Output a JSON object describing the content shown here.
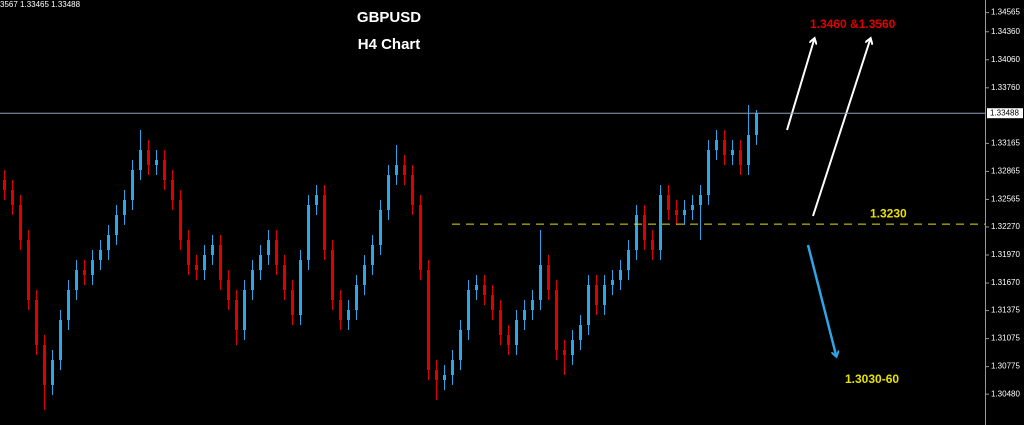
{
  "chart_data": {
    "type": "candlestick",
    "info": "3567 1.33465 1.33488",
    "title": "GBPUSD",
    "subtitle": "H4 Chart",
    "up_color": "#2fa4e7",
    "down_color": "#e00000",
    "ylim": [
      1.3015,
      1.347
    ],
    "yticks": [
      {
        "value": 1.34565,
        "label": "1.34565"
      },
      {
        "value": 1.3436,
        "label": "1.34360"
      },
      {
        "value": 1.3406,
        "label": "1.34060"
      },
      {
        "value": 1.3376,
        "label": "1.33760"
      },
      {
        "value": 1.33165,
        "label": "1.33165"
      },
      {
        "value": 1.32865,
        "label": "1.32865"
      },
      {
        "value": 1.32565,
        "label": "1.32565"
      },
      {
        "value": 1.3227,
        "label": "1.32270"
      },
      {
        "value": 1.3197,
        "label": "1.31970"
      },
      {
        "value": 1.3167,
        "label": "1.31670"
      },
      {
        "value": 1.31375,
        "label": "1.31375"
      },
      {
        "value": 1.31075,
        "label": "1.31075"
      },
      {
        "value": 1.30775,
        "label": "1.30775"
      },
      {
        "value": 1.3048,
        "label": "1.30480"
      }
    ],
    "price_line": {
      "value": 1.33488,
      "label": "1.33488",
      "color": "#8fa0b8"
    },
    "level_line": {
      "value": 1.323,
      "label": "1.3230",
      "color": "#e8e000"
    },
    "annotations": [
      "1.3460 &1.3560",
      "1.3030-60"
    ],
    "open": [
      1.32773,
      1.32666,
      1.32505,
      1.3213,
      1.31488,
      1.31006,
      1.30578,
      1.30846,
      1.31274,
      1.31595,
      1.31809,
      1.31756,
      1.31916,
      1.32023,
      1.32184,
      1.32398,
      1.32559,
      1.3288,
      1.33094,
      1.32933,
      1.32987,
      1.32773,
      1.32559,
      1.3213,
      1.31863,
      1.31809,
      1.3197,
      1.32077,
      1.31702,
      1.31488,
      1.31167,
      1.31595,
      1.31809,
      1.3197,
      1.3213,
      1.31863,
      1.31595,
      1.31327,
      1.31916,
      1.32505,
      1.32612,
      1.32023,
      1.31488,
      1.31274,
      1.31381,
      1.31649,
      1.31863,
      1.32077,
      1.32452,
      1.32826,
      1.32933,
      1.32826,
      1.32505,
      1.31809,
      1.30738,
      1.30631,
      1.30685,
      1.30846,
      1.31167,
      1.31595,
      1.31649,
      1.31541,
      1.31381,
      1.31113,
      1.31006,
      1.31274,
      1.31381,
      1.31488,
      1.31863,
      1.31595,
      1.30953,
      1.30899,
      1.3106,
      1.3122,
      1.31649,
      1.31434,
      1.31649,
      1.31702,
      1.31809,
      1.32023,
      1.32398,
      1.3213,
      1.32023,
      1.32612,
      1.32452,
      1.32398,
      1.32452,
      1.32505,
      1.32612,
      1.33094,
      1.33201,
      1.3304,
      1.33094,
      1.32933,
      1.33255
    ],
    "high": [
      1.3288,
      1.32773,
      1.32612,
      1.32237,
      1.31595,
      1.31113,
      1.30953,
      1.31381,
      1.31702,
      1.31916,
      1.31916,
      1.32023,
      1.3213,
      1.32291,
      1.32505,
      1.32666,
      1.32987,
      1.33308,
      1.33201,
      1.33094,
      1.33094,
      1.3288,
      1.32666,
      1.32237,
      1.3197,
      1.32077,
      1.32184,
      1.32184,
      1.31809,
      1.31595,
      1.31702,
      1.31916,
      1.32077,
      1.32237,
      1.32237,
      1.3197,
      1.31702,
      1.32023,
      1.32612,
      1.32719,
      1.32719,
      1.3213,
      1.31595,
      1.31488,
      1.31756,
      1.3197,
      1.32184,
      1.32559,
      1.32933,
      1.33147,
      1.3304,
      1.32933,
      1.32612,
      1.31916,
      1.30846,
      1.30792,
      1.30953,
      1.31274,
      1.31702,
      1.31756,
      1.31756,
      1.31649,
      1.31488,
      1.3122,
      1.31381,
      1.31488,
      1.31595,
      1.32237,
      1.3197,
      1.31702,
      1.3106,
      1.31167,
      1.31327,
      1.31756,
      1.31756,
      1.31756,
      1.31809,
      1.31916,
      1.3213,
      1.32505,
      1.32505,
      1.32237,
      1.32719,
      1.32719,
      1.32559,
      1.32559,
      1.32612,
      1.32719,
      1.33201,
      1.33308,
      1.33308,
      1.33201,
      1.33201,
      1.33576,
      1.33522
    ],
    "low": [
      1.32559,
      1.32398,
      1.32023,
      1.31381,
      1.30899,
      1.3031,
      1.30471,
      1.30738,
      1.31167,
      1.31488,
      1.31649,
      1.31649,
      1.31809,
      1.31916,
      1.32077,
      1.32291,
      1.32452,
      1.32773,
      1.32826,
      1.32826,
      1.32666,
      1.32452,
      1.32023,
      1.31756,
      1.31702,
      1.31702,
      1.31863,
      1.31595,
      1.31381,
      1.31006,
      1.3106,
      1.31488,
      1.31702,
      1.31863,
      1.31756,
      1.31488,
      1.3122,
      1.3122,
      1.31809,
      1.32398,
      1.31916,
      1.31381,
      1.31167,
      1.31167,
      1.31274,
      1.31541,
      1.31756,
      1.3197,
      1.32345,
      1.32719,
      1.32719,
      1.32398,
      1.31702,
      1.30631,
      1.30417,
      1.30524,
      1.30578,
      1.30738,
      1.3106,
      1.31488,
      1.31434,
      1.31274,
      1.31006,
      1.30899,
      1.30899,
      1.31167,
      1.31274,
      1.31381,
      1.31488,
      1.30846,
      1.30685,
      1.30792,
      1.30953,
      1.31113,
      1.31327,
      1.31327,
      1.31541,
      1.31595,
      1.31702,
      1.31916,
      1.32023,
      1.31916,
      1.31916,
      1.32345,
      1.32291,
      1.32291,
      1.32345,
      1.3213,
      1.32505,
      1.32987,
      1.32933,
      1.32933,
      1.32826,
      1.32826,
      1.33147
    ],
    "close": [
      1.32666,
      1.32505,
      1.3213,
      1.31488,
      1.31006,
      1.30578,
      1.30846,
      1.31274,
      1.31595,
      1.31809,
      1.31756,
      1.31916,
      1.32023,
      1.32184,
      1.32398,
      1.32559,
      1.3288,
      1.33094,
      1.32933,
      1.32987,
      1.32773,
      1.32559,
      1.3213,
      1.31863,
      1.31809,
      1.3197,
      1.32077,
      1.31702,
      1.31488,
      1.31167,
      1.31595,
      1.31809,
      1.3197,
      1.3213,
      1.31863,
      1.31595,
      1.31327,
      1.31916,
      1.32505,
      1.32612,
      1.32023,
      1.31488,
      1.31274,
      1.31381,
      1.31649,
      1.31863,
      1.32077,
      1.32452,
      1.32826,
      1.32933,
      1.32826,
      1.32505,
      1.31809,
      1.30738,
      1.30631,
      1.30685,
      1.30846,
      1.31167,
      1.31595,
      1.31649,
      1.31541,
      1.31381,
      1.31113,
      1.31006,
      1.31274,
      1.31381,
      1.31488,
      1.31863,
      1.31595,
      1.30953,
      1.30899,
      1.3106,
      1.3122,
      1.31649,
      1.31434,
      1.31649,
      1.31702,
      1.31809,
      1.32023,
      1.32398,
      1.3213,
      1.32023,
      1.32612,
      1.32452,
      1.32398,
      1.32452,
      1.32505,
      1.32612,
      1.33094,
      1.33201,
      1.3304,
      1.33094,
      1.32933,
      1.33255,
      1.33488
    ]
  }
}
